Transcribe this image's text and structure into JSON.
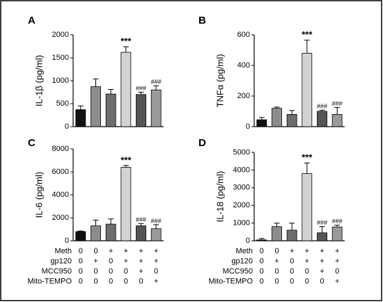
{
  "chart_data": [
    {
      "type": "bar",
      "title": "A",
      "ylabel": "IL-1β (pg/ml)",
      "ylim": [
        0,
        2000
      ],
      "yticks": [
        0,
        500,
        1000,
        1500,
        2000
      ],
      "values": [
        370,
        870,
        710,
        1620,
        700,
        800
      ],
      "errors": [
        80,
        170,
        100,
        120,
        50,
        90
      ],
      "annotations": [
        null,
        null,
        null,
        "***",
        "###",
        "###"
      ],
      "colors": [
        "#111111",
        "#8c8c8c",
        "#6e6e6e",
        "#d3d3d3",
        "#555555",
        "#9a9a9a"
      ]
    },
    {
      "type": "bar",
      "title": "B",
      "ylabel": "TNFα (pg/ml)",
      "ylim": [
        0,
        600
      ],
      "yticks": [
        0,
        200,
        400,
        600
      ],
      "values": [
        45,
        120,
        80,
        480,
        100,
        80
      ],
      "errors": [
        15,
        8,
        25,
        85,
        8,
        45
      ],
      "annotations": [
        null,
        null,
        null,
        "***",
        "###",
        "###"
      ],
      "colors": [
        "#111111",
        "#8c8c8c",
        "#6e6e6e",
        "#d3d3d3",
        "#555555",
        "#9a9a9a"
      ]
    },
    {
      "type": "bar",
      "title": "C",
      "ylabel": "IL-6 (pg/ml)",
      "ylim": [
        0,
        8000
      ],
      "yticks": [
        0,
        2000,
        4000,
        6000,
        8000
      ],
      "values": [
        800,
        1300,
        1450,
        6400,
        1300,
        1050
      ],
      "errors": [
        50,
        500,
        450,
        150,
        200,
        350
      ],
      "annotations": [
        null,
        null,
        null,
        "***",
        "###",
        "###"
      ],
      "colors": [
        "#111111",
        "#8c8c8c",
        "#6e6e6e",
        "#d3d3d3",
        "#555555",
        "#9a9a9a"
      ]
    },
    {
      "type": "bar",
      "title": "D",
      "ylabel": "IL-18 (pg/ml)",
      "ylim": [
        0,
        5000
      ],
      "yticks": [
        0,
        1000,
        2000,
        3000,
        4000,
        5000
      ],
      "values": [
        50,
        800,
        600,
        3800,
        450,
        780
      ],
      "errors": [
        80,
        200,
        400,
        600,
        350,
        100
      ],
      "annotations": [
        null,
        null,
        null,
        "***",
        "###",
        "###"
      ],
      "colors": [
        "#111111",
        "#8c8c8c",
        "#6e6e6e",
        "#d3d3d3",
        "#555555",
        "#9a9a9a"
      ]
    }
  ],
  "conditions": [
    {
      "name": "Meth",
      "values": [
        "0",
        "0",
        "+",
        "+",
        "+",
        "+"
      ]
    },
    {
      "name": "gp120",
      "values": [
        "0",
        "+",
        "0",
        "+",
        "+",
        "+"
      ]
    },
    {
      "name": "MCC950",
      "values": [
        "0",
        "0",
        "0",
        "0",
        "+",
        "0"
      ]
    },
    {
      "name": "Mito-TEMPO",
      "values": [
        "0",
        "0",
        "0",
        "0",
        "0",
        "+"
      ]
    }
  ]
}
